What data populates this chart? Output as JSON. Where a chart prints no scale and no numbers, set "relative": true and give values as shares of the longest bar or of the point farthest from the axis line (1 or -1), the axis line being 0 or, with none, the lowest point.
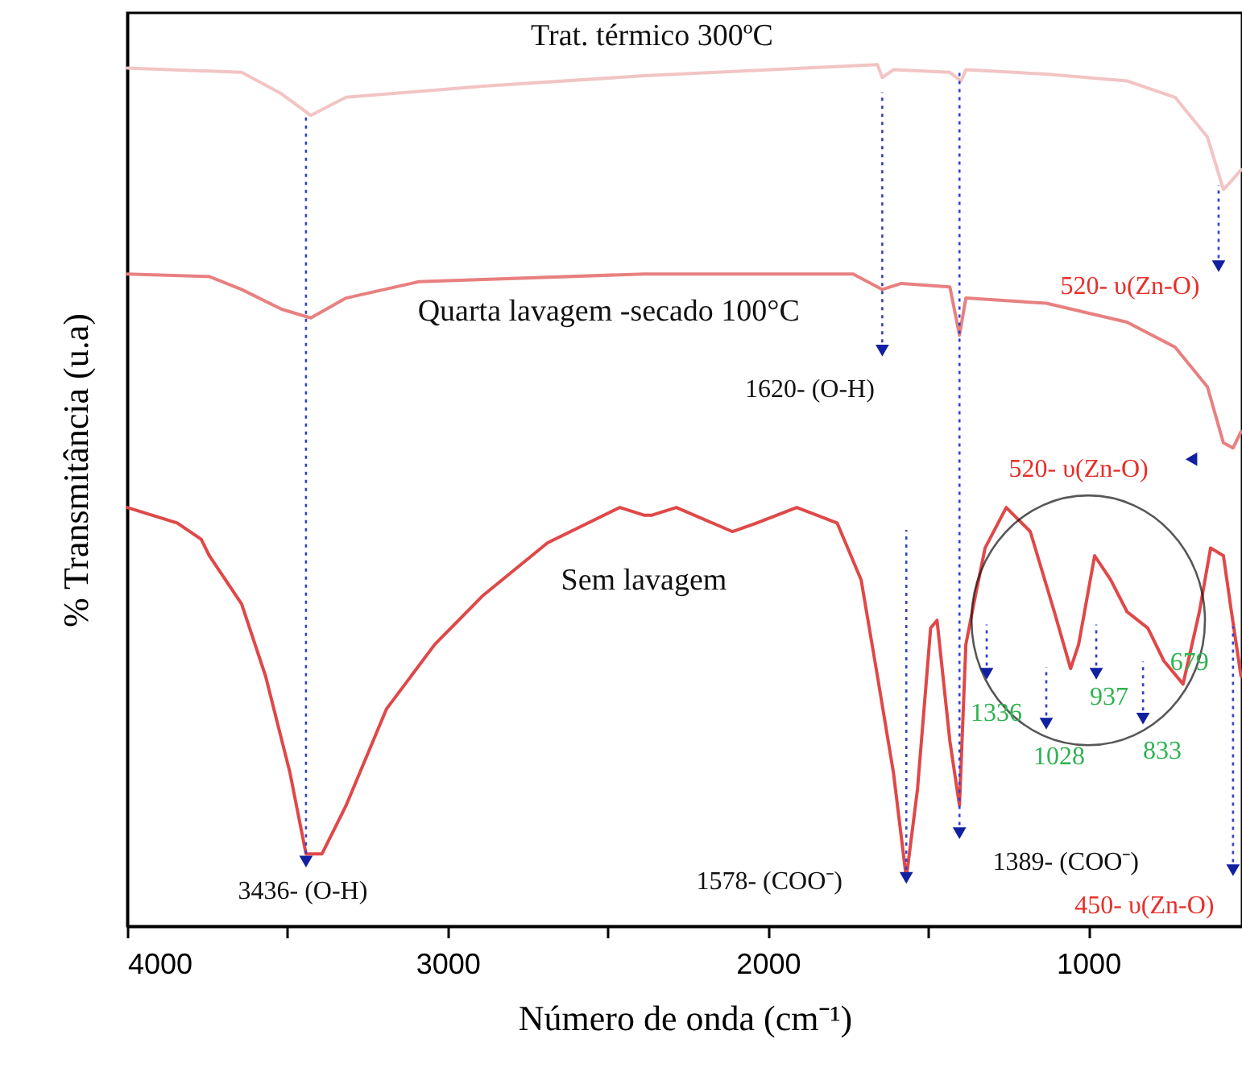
{
  "chart_data": {
    "type": "line",
    "relative": true,
    "ylabel": "% Transmitância (u.a)",
    "xlabel": "Número de onda (cm⁻¹)",
    "xlim": [
      4000,
      520
    ],
    "xticks": [
      4000,
      {
        "value": 3500,
        "label": null
      },
      3000,
      {
        "value": 2500,
        "label": null
      },
      2000,
      {
        "value": 1500,
        "label": null
      },
      1000
    ],
    "series": [
      {
        "name": "Trat. térmico 300ºC",
        "color": "#f2c4c4",
        "x": [
          4000,
          3643,
          3518,
          3427,
          3317,
          2889,
          2387,
          1884,
          1658,
          1643,
          1608,
          1432,
          1397,
          1382,
          1131,
          879,
          729,
          628,
          578,
          553,
          523
        ],
        "values": [
          0.996,
          0.991,
          0.966,
          0.941,
          0.962,
          0.975,
          0.987,
          0.996,
          1,
          0.985,
          0.994,
          0.991,
          0.981,
          0.994,
          0.989,
          0.981,
          0.962,
          0.916,
          0.855,
          0.865,
          0.878
        ]
      },
      {
        "name": "Quarta lavagem -secado 100°C",
        "color": "#e88080",
        "x": [
          4000,
          3744,
          3643,
          3518,
          3427,
          3317,
          3090,
          2387,
          1734,
          1643,
          1583,
          1432,
          1402,
          1382,
          1131,
          879,
          729,
          628,
          578,
          548,
          523
        ],
        "values": [
          0.757,
          0.754,
          0.739,
          0.716,
          0.706,
          0.729,
          0.748,
          0.757,
          0.757,
          0.739,
          0.746,
          0.742,
          0.686,
          0.729,
          0.723,
          0.701,
          0.672,
          0.626,
          0.561,
          0.555,
          0.574
        ]
      },
      {
        "name": "Sem lavagem",
        "color": "#e04848",
        "x": [
          4000,
          3844,
          3769,
          3744,
          3643,
          3568,
          3492,
          3442,
          3392,
          3317,
          3191,
          3040,
          2889,
          2688,
          2462,
          2387,
          2362,
          2286,
          2111,
          2035,
          1910,
          1784,
          1709,
          1658,
          1608,
          1568,
          1533,
          1492,
          1472,
          1432,
          1402,
          1382,
          1352,
          1322,
          1256,
          1181,
          1106,
          1055,
          1030,
          980,
          930,
          879,
          814,
          764,
          704,
          653,
          618,
          578,
          553,
          523
        ],
        "values": [
          0.486,
          0.468,
          0.449,
          0.43,
          0.374,
          0.29,
          0.178,
          0.084,
          0.084,
          0.14,
          0.252,
          0.327,
          0.384,
          0.445,
          0.486,
          0.477,
          0.477,
          0.486,
          0.458,
          0.468,
          0.486,
          0.468,
          0.402,
          0.29,
          0.178,
          0.056,
          0.159,
          0.346,
          0.355,
          0.215,
          0.14,
          0.327,
          0.384,
          0.439,
          0.486,
          0.458,
          0.365,
          0.299,
          0.327,
          0.43,
          0.402,
          0.365,
          0.346,
          0.308,
          0.281,
          0.365,
          0.439,
          0.43,
          0.365,
          0.29
        ]
      }
    ],
    "ref_lines": [
      {
        "axis": "x",
        "value": 3442,
        "color": "#3040d0",
        "line_style": "dotted"
      },
      {
        "axis": "x",
        "value": 1568,
        "color": "#3040d0",
        "line_style": "dotted"
      },
      {
        "axis": "x",
        "value": 1402,
        "color": "#3040d0",
        "line_style": "dotted"
      }
    ],
    "annotations": [
      {
        "text": "3436- (O-H)",
        "x": 3442,
        "y": 0.075
      },
      {
        "text": "1578- (COO⁻)",
        "x": 1568,
        "y": 0.056
      },
      {
        "text": "1389- (COO⁻)",
        "x": 1402,
        "y": 0.108
      },
      {
        "text": "1620- (O-H)",
        "x": 1643,
        "y": 0.668
      },
      {
        "text": "520- υ(Zn-O)",
        "x": 593,
        "y": 0.766
      },
      {
        "text": "520- υ(Zn-O)",
        "x": 678,
        "y": 0.542
      },
      {
        "text": "450- υ(Zn-O)",
        "x": 548,
        "y": 0.065
      },
      {
        "text": "1336",
        "x": 1317,
        "y": 0.293
      },
      {
        "text": "1028",
        "x": 1131,
        "y": 0.235
      },
      {
        "text": "937",
        "x": 975,
        "y": 0.293
      },
      {
        "text": "833",
        "x": 829,
        "y": 0.241
      },
      {
        "text": "679",
        "x": 704,
        "y": 0.292
      }
    ]
  }
}
